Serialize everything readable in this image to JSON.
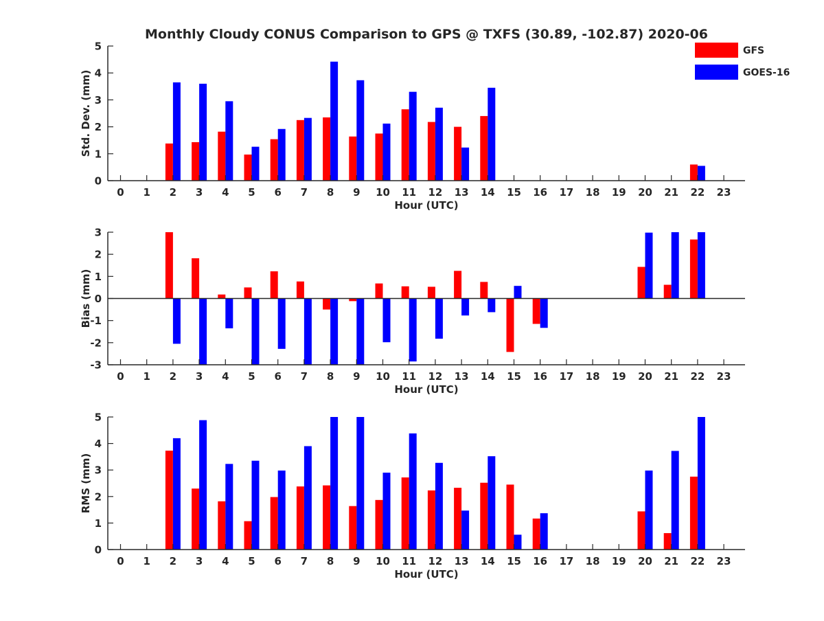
{
  "colors": {
    "GFS": "#ff0000",
    "GOES-16": "#0000ff",
    "axis": "#262626"
  },
  "chart_data": [
    {
      "type": "bar",
      "title": "Monthly Cloudy CONUS Comparison to GPS @ TXFS (30.89, -102.87) 2020-06",
      "xlabel": "Hour (UTC)",
      "ylabel": "Std. Dev. (mm)",
      "ylim": [
        0,
        5
      ],
      "yticks": [
        0,
        1,
        2,
        3,
        4,
        5
      ],
      "categories": [
        "0",
        "1",
        "2",
        "3",
        "4",
        "5",
        "6",
        "7",
        "8",
        "9",
        "10",
        "11",
        "12",
        "13",
        "14",
        "15",
        "16",
        "17",
        "18",
        "19",
        "20",
        "21",
        "22",
        "23"
      ],
      "series": [
        {
          "name": "GFS",
          "values": [
            null,
            null,
            1.38,
            1.43,
            1.82,
            0.97,
            1.54,
            2.25,
            2.35,
            1.64,
            1.75,
            2.65,
            2.18,
            2.0,
            2.4,
            null,
            null,
            null,
            null,
            null,
            null,
            null,
            0.6,
            null
          ]
        },
        {
          "name": "GOES-16",
          "values": [
            null,
            null,
            3.65,
            3.6,
            2.95,
            1.26,
            1.92,
            2.33,
            4.42,
            3.73,
            2.12,
            3.3,
            2.71,
            1.23,
            3.45,
            null,
            null,
            null,
            null,
            null,
            null,
            null,
            0.55,
            null
          ]
        }
      ],
      "legend": {
        "position": "top-right",
        "entries": [
          "GFS",
          "GOES-16"
        ]
      }
    },
    {
      "type": "bar",
      "title": "",
      "xlabel": "Hour (UTC)",
      "ylabel": "Bias (mm)",
      "ylim": [
        -3,
        3
      ],
      "yticks": [
        -3,
        -2,
        -1,
        0,
        1,
        2,
        3
      ],
      "categories": [
        "0",
        "1",
        "2",
        "3",
        "4",
        "5",
        "6",
        "7",
        "8",
        "9",
        "10",
        "11",
        "12",
        "13",
        "14",
        "15",
        "16",
        "17",
        "18",
        "19",
        "20",
        "21",
        "22",
        "23"
      ],
      "series": [
        {
          "name": "GFS",
          "values": [
            null,
            null,
            3.0,
            1.82,
            0.18,
            0.5,
            1.23,
            0.77,
            -0.5,
            -0.12,
            0.68,
            0.55,
            0.53,
            1.25,
            0.75,
            -2.42,
            -1.15,
            null,
            null,
            null,
            1.43,
            0.62,
            2.67,
            null
          ]
        },
        {
          "name": "GOES-16",
          "values": [
            null,
            null,
            -2.05,
            -3.0,
            -1.35,
            -3.0,
            -2.28,
            -3.0,
            -3.0,
            -3.0,
            -1.98,
            -2.85,
            -1.82,
            -0.77,
            -0.62,
            0.57,
            -1.33,
            null,
            null,
            null,
            2.98,
            3.0,
            3.0,
            null
          ]
        }
      ]
    },
    {
      "type": "bar",
      "title": "",
      "xlabel": "Hour (UTC)",
      "ylabel": "RMS (mm)",
      "ylim": [
        0,
        5
      ],
      "yticks": [
        0,
        1,
        2,
        3,
        4,
        5
      ],
      "categories": [
        "0",
        "1",
        "2",
        "3",
        "4",
        "5",
        "6",
        "7",
        "8",
        "9",
        "10",
        "11",
        "12",
        "13",
        "14",
        "15",
        "16",
        "17",
        "18",
        "19",
        "20",
        "21",
        "22",
        "23"
      ],
      "series": [
        {
          "name": "GFS",
          "values": [
            null,
            null,
            3.73,
            2.3,
            1.82,
            1.07,
            1.98,
            2.38,
            2.42,
            1.64,
            1.87,
            2.72,
            2.23,
            2.33,
            2.52,
            2.45,
            1.17,
            null,
            null,
            null,
            1.44,
            0.62,
            2.75,
            null
          ]
        },
        {
          "name": "GOES-16",
          "values": [
            null,
            null,
            4.2,
            4.88,
            3.23,
            3.35,
            2.98,
            3.9,
            5.0,
            5.0,
            2.9,
            4.38,
            3.27,
            1.47,
            3.52,
            0.56,
            1.37,
            null,
            null,
            null,
            2.98,
            3.72,
            5.0,
            null
          ]
        }
      ]
    }
  ]
}
